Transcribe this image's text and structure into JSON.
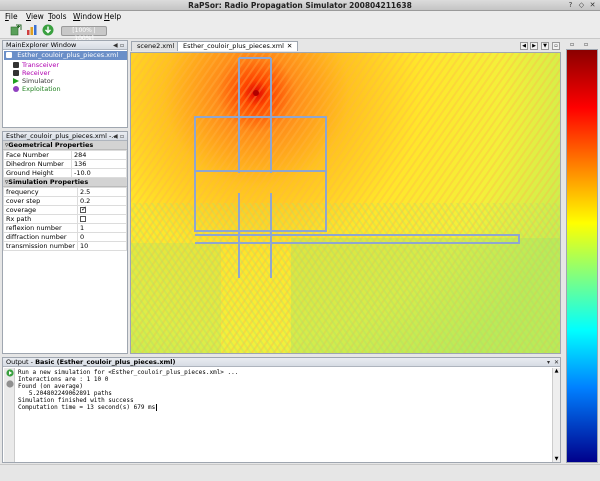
{
  "window": {
    "title": "RaPSor: Radio Propagation Simulator 200804211638",
    "controls": [
      "?",
      "◇",
      "✕"
    ]
  },
  "menu": [
    {
      "label": "File",
      "mnemonic": "F",
      "rest": "ile"
    },
    {
      "label": "View",
      "mnemonic": "V",
      "rest": "iew"
    },
    {
      "label": "Tools",
      "mnemonic": "T",
      "rest": "ools"
    },
    {
      "label": "Window",
      "mnemonic": "W",
      "rest": "indow"
    },
    {
      "label": "Help",
      "mnemonic": "H",
      "rest": "elp"
    }
  ],
  "toolbar": {
    "icons": [
      "new-scene-icon",
      "bar-chart-icon",
      "download-icon"
    ],
    "field_text": "[100% | 100%]"
  },
  "explorer": {
    "title": "MainExplorer Window",
    "root": "Esther_couloir_plus_pieces.xml",
    "items": [
      {
        "label": "Transceiver",
        "icon": "antenna-icon",
        "color": "#b000b0"
      },
      {
        "label": "Receiver",
        "icon": "antenna-icon",
        "color": "#b000b0"
      },
      {
        "label": "Simulator",
        "icon": "play-icon",
        "color": "#208020"
      },
      {
        "label": "Exploitation",
        "icon": "chart-icon",
        "color": "#208020"
      }
    ]
  },
  "properties": {
    "title": "Esther_couloir_plus_pieces.xml -...",
    "geom_header": "Geometrical Properties",
    "geom": [
      {
        "name": "Face Number",
        "value": "284"
      },
      {
        "name": "Dihedron Number",
        "value": "136"
      },
      {
        "name": "Ground Height",
        "value": "-10.0"
      }
    ],
    "sim_header": "Simulation Properties",
    "sim": [
      {
        "name": "frequency",
        "value": "2.5",
        "kind": "text"
      },
      {
        "name": "cover step",
        "value": "0.2",
        "kind": "text"
      },
      {
        "name": "coverage",
        "value": "",
        "kind": "check",
        "checked": true
      },
      {
        "name": "Rx path",
        "value": "",
        "kind": "check",
        "checked": false
      },
      {
        "name": "reflexion number",
        "value": "1",
        "kind": "text"
      },
      {
        "name": "diffraction number",
        "value": "0",
        "kind": "text"
      },
      {
        "name": "transmission number",
        "value": "10",
        "kind": "text"
      }
    ]
  },
  "tabs": [
    {
      "label": "scene2.xml",
      "active": false
    },
    {
      "label": "Esther_couloir_plus_pieces.xml",
      "active": true
    }
  ],
  "output": {
    "title_prefix": "Output - ",
    "title_bold": "Basic (Esther_couloir_plus_pieces.xml)",
    "lines": [
      "Run a new simulation for <Esther_couloir_plus_pieces.xml> ...",
      "Interactions are : 1 10 0",
      "Found (on average)",
      "   5.204802249062891 paths",
      "Simulation finished with success",
      "Computation time = 13 second(s) 679 ms"
    ]
  },
  "colors": {
    "accent_selection": "#6b8fc8",
    "transmitter": "#ff2a00",
    "wall": "#8fa6cf"
  }
}
